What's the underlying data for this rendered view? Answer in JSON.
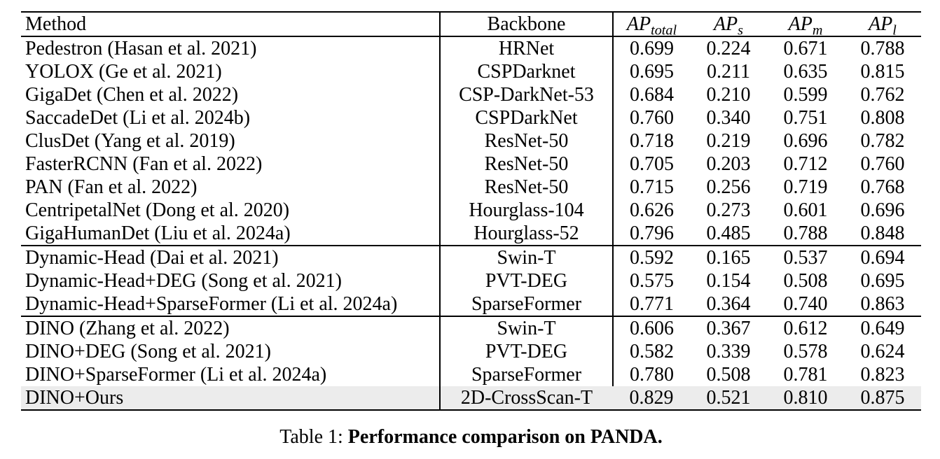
{
  "colors": {
    "highlight_row": "#ececec",
    "text": "#000000",
    "background": "#ffffff",
    "rule": "#000000"
  },
  "table": {
    "headers": {
      "method": "Method",
      "backbone": "Backbone",
      "metrics": [
        {
          "base": "AP",
          "sub": "total"
        },
        {
          "base": "AP",
          "sub": "s"
        },
        {
          "base": "AP",
          "sub": "m"
        },
        {
          "base": "AP",
          "sub": "l"
        }
      ]
    },
    "groups": [
      {
        "rows": [
          {
            "method": "Pedestron (Hasan et al. 2021)",
            "backbone": "HRNet",
            "values": [
              "0.699",
              "0.224",
              "0.671",
              "0.788"
            ],
            "highlight": false
          },
          {
            "method": "YOLOX (Ge et al. 2021)",
            "backbone": "CSPDarknet",
            "values": [
              "0.695",
              "0.211",
              "0.635",
              "0.815"
            ],
            "highlight": false
          },
          {
            "method": "GigaDet (Chen et al. 2022)",
            "backbone": "CSP-DarkNet-53",
            "values": [
              "0.684",
              "0.210",
              "0.599",
              "0.762"
            ],
            "highlight": false
          },
          {
            "method": "SaccadeDet (Li et al. 2024b)",
            "backbone": "CSPDarkNet",
            "values": [
              "0.760",
              "0.340",
              "0.751",
              "0.808"
            ],
            "highlight": false
          },
          {
            "method": "ClusDet (Yang et al. 2019)",
            "backbone": "ResNet-50",
            "values": [
              "0.718",
              "0.219",
              "0.696",
              "0.782"
            ],
            "highlight": false
          },
          {
            "method": "FasterRCNN (Fan et al. 2022)",
            "backbone": "ResNet-50",
            "values": [
              "0.705",
              "0.203",
              "0.712",
              "0.760"
            ],
            "highlight": false
          },
          {
            "method": "PAN (Fan et al. 2022)",
            "backbone": "ResNet-50",
            "values": [
              "0.715",
              "0.256",
              "0.719",
              "0.768"
            ],
            "highlight": false
          },
          {
            "method": "CentripetalNet (Dong et al. 2020)",
            "backbone": "Hourglass-104",
            "values": [
              "0.626",
              "0.273",
              "0.601",
              "0.696"
            ],
            "highlight": false
          },
          {
            "method": "GigaHumanDet (Liu et al. 2024a)",
            "backbone": "Hourglass-52",
            "values": [
              "0.796",
              "0.485",
              "0.788",
              "0.848"
            ],
            "highlight": false
          }
        ]
      },
      {
        "rows": [
          {
            "method": "Dynamic-Head (Dai et al. 2021)",
            "backbone": "Swin-T",
            "values": [
              "0.592",
              "0.165",
              "0.537",
              "0.694"
            ],
            "highlight": false
          },
          {
            "method": "Dynamic-Head+DEG (Song et al. 2021)",
            "backbone": "PVT-DEG",
            "values": [
              "0.575",
              "0.154",
              "0.508",
              "0.695"
            ],
            "highlight": false
          },
          {
            "method": "Dynamic-Head+SparseFormer (Li et al. 2024a)",
            "backbone": "SparseFormer",
            "values": [
              "0.771",
              "0.364",
              "0.740",
              "0.863"
            ],
            "highlight": false
          }
        ]
      },
      {
        "rows": [
          {
            "method": "DINO (Zhang et al. 2022)",
            "backbone": "Swin-T",
            "values": [
              "0.606",
              "0.367",
              "0.612",
              "0.649"
            ],
            "highlight": false
          },
          {
            "method": "DINO+DEG (Song et al. 2021)",
            "backbone": "PVT-DEG",
            "values": [
              "0.582",
              "0.339",
              "0.578",
              "0.624"
            ],
            "highlight": false
          },
          {
            "method": "DINO+SparseFormer (Li et al. 2024a)",
            "backbone": "SparseFormer",
            "values": [
              "0.780",
              "0.508",
              "0.781",
              "0.823"
            ],
            "highlight": false
          },
          {
            "method": "DINO+Ours",
            "backbone": "2D-CrossScan-T",
            "values": [
              "0.829",
              "0.521",
              "0.810",
              "0.875"
            ],
            "highlight": true
          }
        ]
      }
    ]
  },
  "caption": {
    "label": "Table 1:",
    "title": "Performance comparison on PANDA."
  }
}
